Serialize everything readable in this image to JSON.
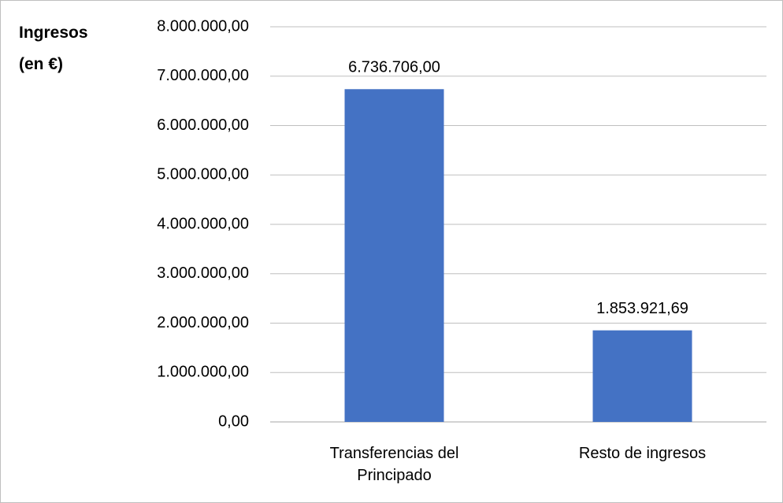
{
  "chart_data": {
    "type": "bar",
    "y_label": "Ingresos (en €)",
    "categories": [
      "Transferencias del Principado",
      "Resto de ingresos"
    ],
    "values": [
      6736706.0,
      1853921.69
    ],
    "value_labels": [
      "6.736.706,00",
      "1.853.921,69"
    ],
    "color": "#4472c4",
    "ylim": [
      0,
      8000000
    ],
    "yticks": [
      {
        "value": 0,
        "label": "0,00"
      },
      {
        "value": 1000000,
        "label": "1.000.000,00"
      },
      {
        "value": 2000000,
        "label": "2.000.000,00"
      },
      {
        "value": 3000000,
        "label": "3.000.000,00"
      },
      {
        "value": 4000000,
        "label": "4.000.000,00"
      },
      {
        "value": 5000000,
        "label": "5.000.000,00"
      },
      {
        "value": 6000000,
        "label": "6.000.000,00"
      },
      {
        "value": 7000000,
        "label": "7.000.000,00"
      },
      {
        "value": 8000000,
        "label": "8.000.000,00"
      }
    ],
    "grid": true
  }
}
